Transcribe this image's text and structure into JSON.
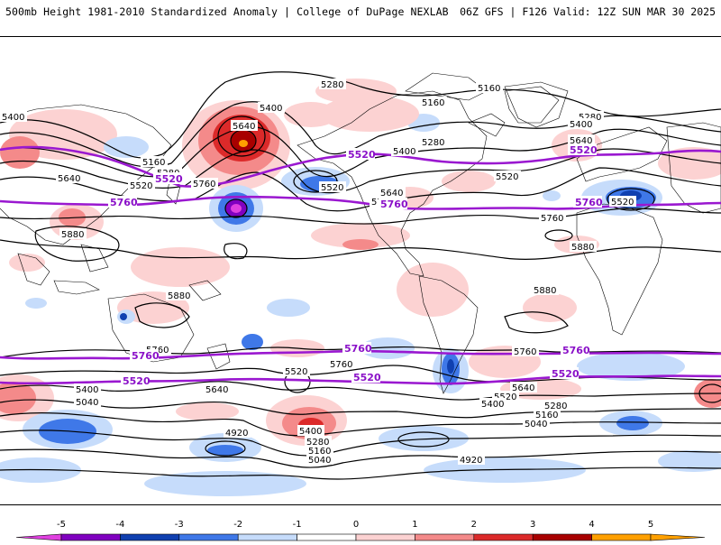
{
  "header": {
    "title": "500mb Height 1981-2010 Standardized Anomaly | College of DuPage NEXLAB",
    "run_info": "06Z GFS | F126 Valid: 12Z SUN MAR 30 2025"
  },
  "contour_labels": {
    "c5280_a": "5280",
    "c5160_a": "5160",
    "c5160_b": "5160",
    "c5400_a": "5400",
    "c5400_b": "5400",
    "c5400_c": "5400",
    "c5400_d": "5400",
    "c5640_a": "5640",
    "c5640_b": "5640",
    "c5640_c": "5640",
    "c5640_d": "5640",
    "c5640_e": "5640",
    "c5160_c": "5160",
    "c5280_b": "5280",
    "c5280_c": "5280",
    "c5280_d": "5280",
    "c5520_a": "5520",
    "c5520_b": "5520",
    "c5520_c": "5520",
    "c5520_d": "5520",
    "c5760_a": "5760",
    "c5760_b": "5760",
    "c5760_c": "5760",
    "c5760_d": "5760",
    "c5760_e": "5760",
    "c5880_a": "5880",
    "c5880_b": "5880",
    "c5880_c": "5880",
    "c5880_d": "5880",
    "c5400_e": "5400",
    "c5400_f": "5400",
    "c5040_a": "5040",
    "c5040_b": "5040",
    "c5040_c": "5040",
    "c5160_d": "5160",
    "c5280_e": "5280",
    "c4920_a": "4920",
    "c4920_b": "4920",
    "c5520_s1": "5520",
    "c5640_s1": "5640",
    "c5640_s2": "5640",
    "c5520_s2": "5520",
    "c5400_s1": "5400",
    "c5280_s1": "5280",
    "c5160_s1": "5160",
    "c5040_s1": "5040",
    "c5520_s3": "5520"
  },
  "purple_labels": {
    "p5520_a": "5520",
    "p5520_b": "5520",
    "p5520_c": "5520",
    "p5760_a": "5760",
    "p5760_b": "5760",
    "p5760_c": "5760",
    "p5760_d": "5760",
    "p5760_e": "5760",
    "p5760_f": "5760",
    "p5520_d": "5520",
    "p5520_e": "5520",
    "p5520_f": "5520"
  },
  "colorbar": {
    "ticks": [
      "-5",
      "-4",
      "-3",
      "-2",
      "-1",
      "0",
      "1",
      "2",
      "3",
      "4",
      "5"
    ],
    "colors": [
      "#e040e0",
      "#8000c0",
      "#1040b0",
      "#3f78e8",
      "#c6dcfb",
      "#ffffff",
      "#fcd2d2",
      "#f48a8a",
      "#dc2a2a",
      "#a80000",
      "#ffa000"
    ]
  }
}
